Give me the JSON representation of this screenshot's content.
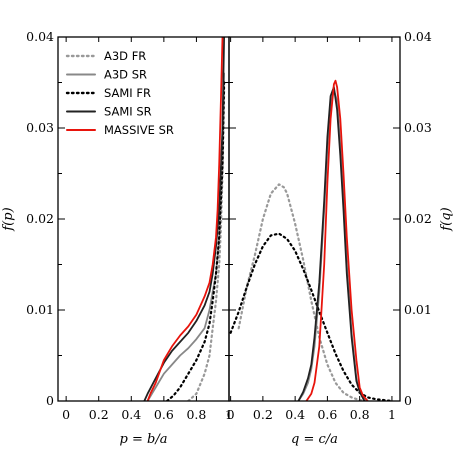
{
  "chart_data": {
    "type": "line",
    "ylim": [
      0,
      0.04
    ],
    "yticks": [
      "0",
      "0.01",
      "0.02",
      "0.03",
      "0.04"
    ],
    "grid": false,
    "legend_position": "top-left",
    "legend": [
      {
        "name": "A3D FR",
        "color": "#999999",
        "style": "dotted"
      },
      {
        "name": "A3D SR",
        "color": "#888888",
        "style": "solid"
      },
      {
        "name": "SAMI FR",
        "color": "#000000",
        "style": "dotted"
      },
      {
        "name": "SAMI SR",
        "color": "#222222",
        "style": "solid"
      },
      {
        "name": "MASSIVE SR",
        "color": "#e8140c",
        "style": "solid"
      }
    ],
    "panels": [
      {
        "xlabel": "p = b/a",
        "ylabel_left": "f(p)",
        "xlim": [
          -0.05,
          1.0
        ],
        "xticks": [
          "0",
          "0.2",
          "0.4",
          "0.6",
          "0.8",
          "1"
        ],
        "series": [
          {
            "name": "A3D FR",
            "x": [
              0.75,
              0.8,
              0.85,
              0.88,
              0.9,
              0.92,
              0.94,
              0.95,
              0.96,
              0.97
            ],
            "y": [
              0,
              0.0008,
              0.003,
              0.005,
              0.008,
              0.011,
              0.015,
              0.019,
              0.025,
              0.034
            ]
          },
          {
            "name": "A3D SR",
            "x": [
              0.5,
              0.55,
              0.6,
              0.65,
              0.7,
              0.75,
              0.8,
              0.85,
              0.88,
              0.9,
              0.92,
              0.94,
              0.96,
              0.97
            ],
            "y": [
              0,
              0.0015,
              0.003,
              0.004,
              0.005,
              0.0058,
              0.0068,
              0.008,
              0.01,
              0.012,
              0.014,
              0.018,
              0.026,
              0.036
            ]
          },
          {
            "name": "SAMI FR",
            "x": [
              0.62,
              0.66,
              0.7,
              0.75,
              0.8,
              0.85,
              0.88,
              0.9,
              0.92,
              0.94,
              0.96,
              0.97
            ],
            "y": [
              0,
              0.0006,
              0.0015,
              0.003,
              0.0045,
              0.0065,
              0.0085,
              0.011,
              0.014,
              0.018,
              0.026,
              0.035
            ]
          },
          {
            "name": "SAMI SR",
            "x": [
              0.48,
              0.5,
              0.55,
              0.6,
              0.65,
              0.7,
              0.75,
              0.8,
              0.85,
              0.88,
              0.9,
              0.92,
              0.94,
              0.96,
              0.97
            ],
            "y": [
              0,
              0.0008,
              0.0025,
              0.0042,
              0.0055,
              0.0065,
              0.0075,
              0.0088,
              0.0105,
              0.012,
              0.014,
              0.017,
              0.021,
              0.03,
              0.04
            ]
          },
          {
            "name": "MASSIVE SR",
            "x": [
              0.5,
              0.52,
              0.55,
              0.6,
              0.65,
              0.7,
              0.75,
              0.8,
              0.85,
              0.88,
              0.9,
              0.92,
              0.93,
              0.94,
              0.95,
              0.96
            ],
            "y": [
              0,
              0.0009,
              0.002,
              0.0045,
              0.006,
              0.0072,
              0.0082,
              0.0095,
              0.0115,
              0.013,
              0.015,
              0.018,
              0.021,
              0.026,
              0.033,
              0.04
            ]
          }
        ]
      },
      {
        "xlabel": "q = c/a",
        "ylabel_right": "f(q)",
        "xlim": [
          -0.01,
          1.05
        ],
        "xticks": [
          "0",
          "0.2",
          "0.4",
          "0.6",
          "0.8",
          "1"
        ],
        "series": [
          {
            "name": "A3D FR",
            "x": [
              0.05,
              0.1,
              0.15,
              0.2,
              0.25,
              0.3,
              0.33,
              0.35,
              0.4,
              0.45,
              0.5,
              0.55,
              0.6,
              0.65,
              0.7,
              0.75,
              0.8,
              0.85
            ],
            "y": [
              0.008,
              0.0125,
              0.016,
              0.02,
              0.0228,
              0.0238,
              0.0235,
              0.0228,
              0.0195,
              0.0155,
              0.011,
              0.007,
              0.004,
              0.002,
              0.0009,
              0.0004,
              0.0001,
              0
            ]
          },
          {
            "name": "A3D SR",
            "x": [
              0.42,
              0.45,
              0.48,
              0.5,
              0.52,
              0.55,
              0.58,
              0.6,
              0.62,
              0.64,
              0.66,
              0.68,
              0.7,
              0.72,
              0.75,
              0.78,
              0.8,
              0.83
            ],
            "y": [
              0,
              0.0008,
              0.002,
              0.0035,
              0.006,
              0.012,
              0.021,
              0.028,
              0.0325,
              0.0342,
              0.033,
              0.028,
              0.022,
              0.015,
              0.0075,
              0.0025,
              0.0012,
              0
            ]
          },
          {
            "name": "SAMI FR",
            "x": [
              0,
              0.05,
              0.1,
              0.15,
              0.2,
              0.25,
              0.3,
              0.35,
              0.4,
              0.45,
              0.5,
              0.55,
              0.6,
              0.65,
              0.7,
              0.75,
              0.8,
              0.85,
              0.9,
              0.95,
              1.0
            ],
            "y": [
              0.0075,
              0.0098,
              0.0125,
              0.015,
              0.017,
              0.0182,
              0.0184,
              0.0178,
              0.0165,
              0.0145,
              0.0122,
              0.0098,
              0.0075,
              0.0052,
              0.0033,
              0.0018,
              0.0009,
              0.0004,
              0.0002,
              0.0001,
              0
            ]
          },
          {
            "name": "SAMI SR",
            "x": [
              0.42,
              0.45,
              0.48,
              0.5,
              0.52,
              0.55,
              0.58,
              0.6,
              0.62,
              0.64,
              0.66,
              0.68,
              0.7,
              0.72,
              0.75,
              0.78,
              0.8,
              0.83
            ],
            "y": [
              0,
              0.001,
              0.0025,
              0.004,
              0.007,
              0.013,
              0.022,
              0.029,
              0.0335,
              0.0345,
              0.032,
              0.027,
              0.021,
              0.014,
              0.007,
              0.0022,
              0.001,
              0
            ]
          },
          {
            "name": "MASSIVE SR",
            "x": [
              0.47,
              0.5,
              0.52,
              0.55,
              0.58,
              0.6,
              0.62,
              0.64,
              0.65,
              0.66,
              0.68,
              0.7,
              0.72,
              0.75,
              0.78,
              0.8,
              0.82,
              0.85
            ],
            "y": [
              0,
              0.0008,
              0.002,
              0.006,
              0.015,
              0.024,
              0.031,
              0.0348,
              0.0352,
              0.0345,
              0.031,
              0.025,
              0.018,
              0.01,
              0.0045,
              0.0015,
              0.0006,
              0
            ]
          }
        ]
      }
    ]
  }
}
